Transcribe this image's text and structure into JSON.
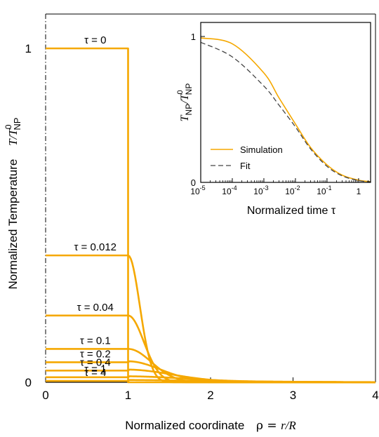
{
  "colors": {
    "curve": "#f5a800",
    "fit": "#444444",
    "axis": "#000000"
  },
  "chart_data": [
    {
      "type": "line",
      "xlabel_text": "Normalized coordinate",
      "xlabel_rho": "ρ = ",
      "xlabel_math": "r/R",
      "ylabel_text": "Normalized Temperature",
      "ylabel_math": "T/T",
      "ylabel_sup": "0",
      "ylabel_sub": "NP",
      "xlim": [
        0,
        4
      ],
      "ylim": [
        0,
        1
      ],
      "xticks": [
        0,
        1,
        2,
        3,
        4
      ],
      "xtick_labels": [
        "0",
        "1",
        "2",
        "3",
        "4"
      ],
      "yticks": [
        0,
        1
      ],
      "ytick_labels": [
        "0",
        "1"
      ],
      "radius": 1,
      "profiles": [
        {
          "label": "τ = 0",
          "core": 1.0,
          "decay": 0
        },
        {
          "label": "τ = 0.012",
          "core": 0.38,
          "decay": 0.2
        },
        {
          "label": "τ = 0.04",
          "core": 0.2,
          "decay": 0.27
        },
        {
          "label": "τ = 0.1",
          "core": 0.1,
          "decay": 0.4
        },
        {
          "label": "τ = 0.2",
          "core": 0.06,
          "decay": 0.55
        },
        {
          "label": "τ = 0.4",
          "core": 0.035,
          "decay": 0.75
        },
        {
          "label": "τ = 1",
          "core": 0.015,
          "decay": 1.0
        },
        {
          "label": "τ = 4",
          "core": 0.004,
          "decay": 1.6
        }
      ]
    },
    {
      "type": "line",
      "xlabel": "Normalized time τ",
      "ylabel_math": "T",
      "ylabel_sub1": "NP",
      "ylabel_mid": "/T",
      "ylabel_sup": "0",
      "ylabel_sub2": "NP",
      "x_scale": "log",
      "xlim_exp": [
        -5,
        0.38
      ],
      "ylim": [
        0,
        1
      ],
      "xtick_exps": [
        -5,
        -4,
        -3,
        -2,
        -1,
        0
      ],
      "xtick_labels": [
        "10",
        "10",
        "10",
        "10",
        "10",
        "1"
      ],
      "xtick_sups": [
        "-5",
        "-4",
        "-3",
        "-2",
        "-1",
        ""
      ],
      "yticks": [
        0,
        1
      ],
      "ytick_labels": [
        "0",
        "1"
      ],
      "legend_position": "bottom-left",
      "series": [
        {
          "name": "Simulation",
          "style": "solid",
          "tau": [
            1e-05,
            0.0001,
            0.001,
            0.003,
            0.01,
            0.03,
            0.1,
            0.3,
            1,
            2.4
          ],
          "values": [
            0.99,
            0.95,
            0.75,
            0.58,
            0.4,
            0.24,
            0.12,
            0.05,
            0.015,
            0.005
          ]
        },
        {
          "name": "Fit",
          "style": "dashed",
          "tau": [
            1e-05,
            0.0001,
            0.001,
            0.003,
            0.01,
            0.03,
            0.1,
            0.3,
            1,
            2.4
          ],
          "values": [
            0.96,
            0.86,
            0.66,
            0.53,
            0.38,
            0.23,
            0.11,
            0.045,
            0.012,
            0.004
          ]
        }
      ]
    }
  ]
}
